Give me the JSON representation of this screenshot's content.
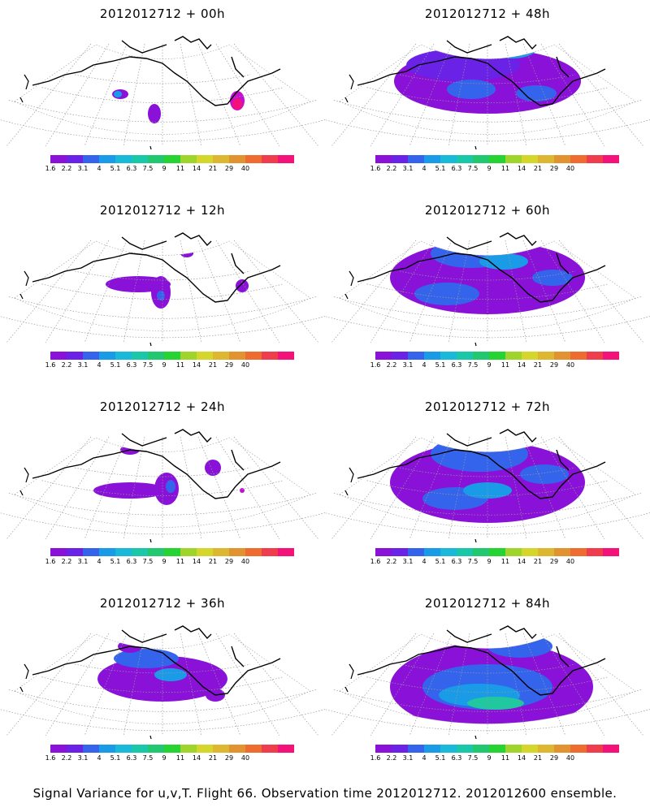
{
  "panels": [
    {
      "title": "2012012712 + 00h",
      "col": 0,
      "row": 0,
      "blobs": [
        [
          148,
          116,
          10,
          6,
          "#8a11d8"
        ],
        [
          145,
          116,
          5,
          4,
          "#1a9be8"
        ],
        [
          190,
          140,
          8,
          12,
          "#8a11d8"
        ],
        [
          292,
          124,
          9,
          12,
          "#c50fd0"
        ],
        [
          292,
          128,
          6,
          7,
          "#f2127a"
        ]
      ]
    },
    {
      "title": "2012012712 + 48h",
      "col": 1,
      "row": 0,
      "blobs": [
        [
          200,
          100,
          115,
          40,
          "#8a11d8"
        ],
        [
          170,
          80,
          70,
          20,
          "#6a22e6"
        ],
        [
          230,
          60,
          30,
          12,
          "#1a9be8"
        ],
        [
          180,
          110,
          30,
          12,
          "#3564ec"
        ],
        [
          260,
          115,
          25,
          10,
          "#3564ec"
        ],
        [
          200,
          190,
          6,
          5,
          "#8a11d8"
        ]
      ]
    },
    {
      "title": "2012012712 + 12h",
      "col": 0,
      "row": 1,
      "blobs": [
        [
          170,
          108,
          40,
          10,
          "#8a11d8"
        ],
        [
          198,
          118,
          12,
          20,
          "#8a11d8"
        ],
        [
          198,
          122,
          5,
          6,
          "#3564ec"
        ],
        [
          298,
          110,
          8,
          8,
          "#8a11d8"
        ],
        [
          230,
          70,
          8,
          5,
          "#8a11d8"
        ]
      ]
    },
    {
      "title": "2012012712 + 60h",
      "col": 1,
      "row": 1,
      "blobs": [
        [
          200,
          100,
          120,
          45,
          "#8a11d8"
        ],
        [
          180,
          70,
          50,
          18,
          "#3564ec"
        ],
        [
          220,
          80,
          30,
          10,
          "#1a9be8"
        ],
        [
          150,
          120,
          40,
          14,
          "#3564ec"
        ],
        [
          280,
          100,
          25,
          10,
          "#3564ec"
        ],
        [
          200,
          200,
          6,
          5,
          "#8a11d8"
        ]
      ]
    },
    {
      "title": "2012012712 + 24h",
      "col": 0,
      "row": 2,
      "blobs": [
        [
          160,
          120,
          45,
          10,
          "#8a11d8"
        ],
        [
          205,
          118,
          15,
          20,
          "#8a11d8"
        ],
        [
          210,
          115,
          6,
          8,
          "#3564ec"
        ],
        [
          160,
          70,
          12,
          6,
          "#8a11d8"
        ],
        [
          262,
          92,
          10,
          10,
          "#8a11d8"
        ],
        [
          298,
          120,
          3,
          3,
          "#c50fd0"
        ]
      ]
    },
    {
      "title": "2012012712 + 72h",
      "col": 1,
      "row": 2,
      "blobs": [
        [
          200,
          110,
          120,
          50,
          "#8a11d8"
        ],
        [
          190,
          75,
          60,
          22,
          "#3564ec"
        ],
        [
          160,
          130,
          40,
          14,
          "#3564ec"
        ],
        [
          200,
          120,
          30,
          10,
          "#1a9be8"
        ],
        [
          270,
          100,
          30,
          12,
          "#3564ec"
        ],
        [
          205,
          190,
          12,
          12,
          "#8a11d8"
        ]
      ]
    },
    {
      "title": "2012012712 + 36h",
      "col": 0,
      "row": 3,
      "blobs": [
        [
          200,
          110,
          80,
          28,
          "#8a11d8"
        ],
        [
          180,
          85,
          40,
          12,
          "#3564ec"
        ],
        [
          210,
          105,
          20,
          8,
          "#1a9be8"
        ],
        [
          160,
          70,
          15,
          8,
          "#8a11d8"
        ],
        [
          265,
          130,
          12,
          8,
          "#8a11d8"
        ]
      ]
    },
    {
      "title": "2012012712 + 84h",
      "col": 1,
      "row": 3,
      "blobs": [
        [
          205,
          120,
          125,
          55,
          "#8a11d8"
        ],
        [
          200,
          120,
          80,
          28,
          "#3564ec"
        ],
        [
          190,
          130,
          50,
          14,
          "#1a9be8"
        ],
        [
          210,
          140,
          35,
          8,
          "#20c79f"
        ],
        [
          240,
          70,
          40,
          14,
          "#3564ec"
        ],
        [
          210,
          215,
          12,
          14,
          "#8a11d8"
        ]
      ]
    }
  ],
  "colorbar": {
    "colors": [
      "#8a11d8",
      "#6a22e6",
      "#3564ec",
      "#1a9be8",
      "#1ab9d9",
      "#1ac7a8",
      "#22c86f",
      "#27d233",
      "#9ed42b",
      "#d4d62b",
      "#ddb632",
      "#e1932f",
      "#ee6c2f",
      "#f03d4d",
      "#f2127a"
    ],
    "labels": [
      "1.6",
      "2.2",
      "3.1",
      "4",
      "5.1",
      "6.3",
      "7.5",
      "9",
      "11",
      "14",
      "21",
      "29",
      "40"
    ]
  },
  "footer": "Signal Variance for u,v,T. Flight 66. Observation time 2012012712. 2012012600 ensemble."
}
